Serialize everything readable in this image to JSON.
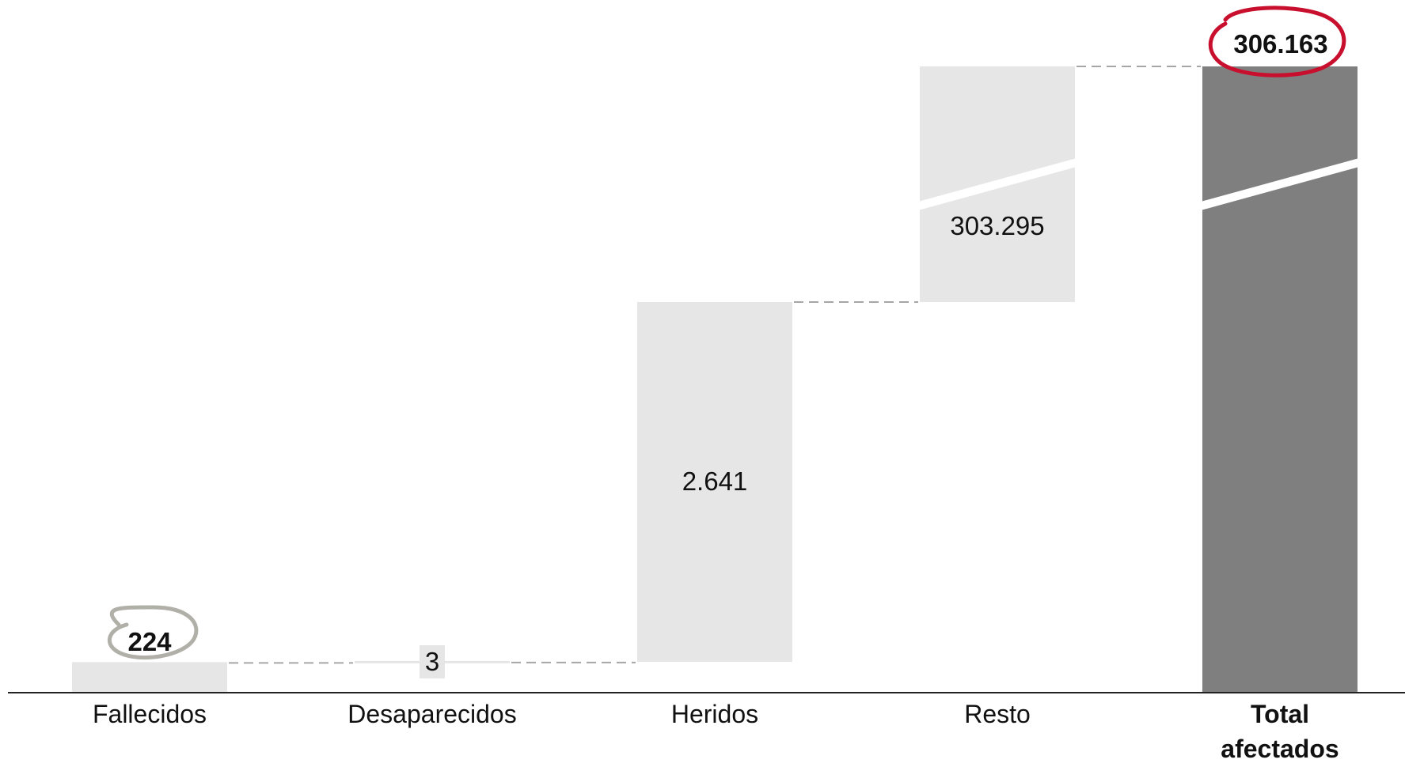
{
  "chart_data": {
    "type": "bar",
    "subtype": "waterfall",
    "categories": [
      "Fallecidos",
      "Desaparecidos",
      "Heridos",
      "Resto",
      "Total afectados"
    ],
    "values": [
      224,
      3,
      2641,
      303295,
      306163
    ],
    "value_labels": [
      "224",
      "3",
      "2.641",
      "303.295",
      "306.163"
    ],
    "total_index": 4,
    "axis_break": true,
    "title": "",
    "xlabel": "",
    "ylabel": "",
    "grid": false,
    "legend": "none",
    "highlighted_labels": [
      0,
      4
    ],
    "colors": {
      "step_bar": "#e6e6e6",
      "total_bar": "#7f7f7f",
      "connector": "#a6a6a6",
      "axis": "#222222",
      "highlight_circle_total": "#c8102e",
      "highlight_circle_first": "#b0b0a8",
      "break_gap": "#ffffff"
    }
  }
}
